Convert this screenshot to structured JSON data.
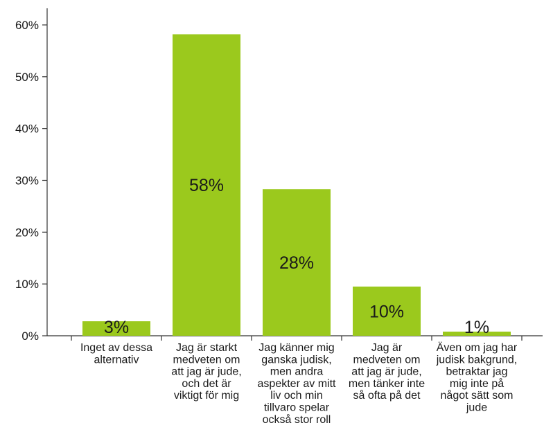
{
  "chart_data": {
    "type": "bar",
    "categories": [
      [
        "Inget av dessa",
        "alternativ"
      ],
      [
        "Jag är starkt",
        "medveten om",
        "att jag är jude,",
        "och det är",
        "viktigt för mig"
      ],
      [
        "Jag känner mig",
        "ganska judisk,",
        "men andra",
        "aspekter av mitt",
        "liv och min",
        "tillvaro spelar",
        "också stor roll"
      ],
      [
        "Jag är",
        "medveten om",
        "att jag är jude,",
        "men tänker inte",
        "så ofta på det"
      ],
      [
        "Även om jag har",
        "judisk bakgrund,",
        "betraktar jag",
        "mig inte på",
        "något sätt som",
        "jude"
      ]
    ],
    "values": [
      2.8,
      58.2,
      28.3,
      9.5,
      0.8
    ],
    "data_labels": [
      "3%",
      "58%",
      "28%",
      "10%",
      "1%"
    ],
    "yticks": [
      "0%",
      "10%",
      "20%",
      "30%",
      "40%",
      "50%",
      "60%"
    ],
    "ylim": [
      0,
      63
    ],
    "bar_color": "#9bc91d",
    "axis_color": "#333333",
    "grid": false,
    "legend": "none"
  }
}
